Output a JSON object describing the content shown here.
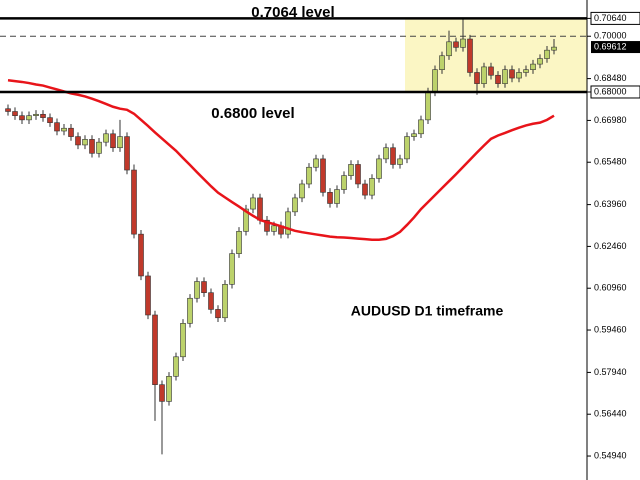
{
  "chart_data": {
    "type": "candlestick",
    "ylim": [
      0.5408,
      0.713
    ],
    "yticks": [
      {
        "value": 0.7064,
        "label": "0.70640"
      },
      {
        "value": 0.7,
        "label": "0.70000"
      },
      {
        "value": 0.6848,
        "label": "0.68480"
      },
      {
        "value": 0.68,
        "label": "0.68000"
      },
      {
        "value": 0.6698,
        "label": "0.66980"
      },
      {
        "value": 0.6548,
        "label": "0.65480"
      },
      {
        "value": 0.6396,
        "label": "0.63960"
      },
      {
        "value": 0.6246,
        "label": "0.62460"
      },
      {
        "value": 0.6096,
        "label": "0.60960"
      },
      {
        "value": 0.5946,
        "label": "0.59460"
      },
      {
        "value": 0.5794,
        "label": "0.57940"
      },
      {
        "value": 0.5644,
        "label": "0.56440"
      },
      {
        "value": 0.5494,
        "label": "0.54940"
      }
    ],
    "last_price": {
      "value": 0.69612,
      "label": "0.69612"
    },
    "levels": [
      {
        "value": 0.7064,
        "label": "0.7064 level"
      },
      {
        "value": 0.68,
        "label": "0.6800 level"
      }
    ],
    "dashed_level": 0.7,
    "annotation": "AUDUSD D1 timeframe",
    "up_color": "#bcd26b",
    "down_color": "#c0392b",
    "zone_color": "#fbf6c4",
    "open": [
      0.674,
      0.673,
      0.6715,
      0.67,
      0.6715,
      0.672,
      0.6708,
      0.669,
      0.666,
      0.667,
      0.664,
      0.661,
      0.663,
      0.658,
      0.662,
      0.665,
      0.66,
      0.664,
      0.652,
      0.629,
      0.614,
      0.6,
      0.575,
      0.569,
      0.578,
      0.585,
      0.597,
      0.606,
      0.612,
      0.608,
      0.602,
      0.599,
      0.611,
      0.622,
      0.63,
      0.638,
      0.642,
      0.634,
      0.63,
      0.632,
      0.629,
      0.637,
      0.642,
      0.647,
      0.653,
      0.656,
      0.644,
      0.64,
      0.645,
      0.65,
      0.654,
      0.647,
      0.643,
      0.649,
      0.656,
      0.66,
      0.654,
      0.656,
      0.664,
      0.665,
      0.67,
      0.68,
      0.688,
      0.693,
      0.698,
      0.696,
      0.699,
      0.687,
      0.683,
      0.689,
      0.686,
      0.683,
      0.688,
      0.685,
      0.687,
      0.688,
      0.69,
      0.692,
      0.695
    ],
    "high": [
      0.6755,
      0.6745,
      0.673,
      0.673,
      0.6735,
      0.6735,
      0.6723,
      0.6705,
      0.6685,
      0.6685,
      0.6655,
      0.6645,
      0.6645,
      0.6635,
      0.6665,
      0.6665,
      0.67,
      0.6655,
      0.654,
      0.6305,
      0.6155,
      0.6015,
      0.5765,
      0.5795,
      0.5865,
      0.5985,
      0.6075,
      0.6135,
      0.6135,
      0.6095,
      0.6035,
      0.6125,
      0.6235,
      0.6315,
      0.6395,
      0.6435,
      0.6435,
      0.6355,
      0.6335,
      0.6335,
      0.6385,
      0.6435,
      0.6485,
      0.6545,
      0.6575,
      0.6575,
      0.6455,
      0.6465,
      0.6515,
      0.6555,
      0.6555,
      0.6485,
      0.6505,
      0.6575,
      0.6615,
      0.6615,
      0.6575,
      0.6655,
      0.6665,
      0.6715,
      0.6815,
      0.6895,
      0.6945,
      0.702,
      0.6995,
      0.7064,
      0.7005,
      0.6885,
      0.6905,
      0.6905,
      0.6875,
      0.6895,
      0.6895,
      0.6885,
      0.6895,
      0.6915,
      0.6935,
      0.6965,
      0.699
    ],
    "low": [
      0.6715,
      0.67,
      0.6685,
      0.6685,
      0.67,
      0.6693,
      0.6675,
      0.6645,
      0.6645,
      0.6625,
      0.6595,
      0.6595,
      0.6565,
      0.6565,
      0.6605,
      0.6585,
      0.6585,
      0.6505,
      0.6275,
      0.6125,
      0.5985,
      0.562,
      0.55,
      0.5675,
      0.5765,
      0.5835,
      0.5955,
      0.6045,
      0.6065,
      0.6005,
      0.5975,
      0.5975,
      0.6095,
      0.6205,
      0.6285,
      0.6365,
      0.6325,
      0.6285,
      0.6285,
      0.6275,
      0.6275,
      0.6355,
      0.6405,
      0.6455,
      0.6515,
      0.6425,
      0.6385,
      0.6385,
      0.6435,
      0.6485,
      0.6455,
      0.6415,
      0.6415,
      0.6475,
      0.6545,
      0.6525,
      0.6525,
      0.6545,
      0.6625,
      0.6635,
      0.6685,
      0.6785,
      0.6865,
      0.6915,
      0.6945,
      0.6945,
      0.6855,
      0.679,
      0.6815,
      0.6845,
      0.6815,
      0.6815,
      0.6835,
      0.6835,
      0.6855,
      0.6865,
      0.6885,
      0.6905,
      0.6935
    ],
    "close": [
      0.673,
      0.6715,
      0.67,
      0.6715,
      0.672,
      0.6708,
      0.669,
      0.666,
      0.667,
      0.664,
      0.661,
      0.663,
      0.658,
      0.662,
      0.665,
      0.66,
      0.664,
      0.652,
      0.629,
      0.614,
      0.6,
      0.575,
      0.569,
      0.578,
      0.585,
      0.597,
      0.606,
      0.612,
      0.608,
      0.602,
      0.599,
      0.611,
      0.622,
      0.63,
      0.638,
      0.642,
      0.634,
      0.63,
      0.632,
      0.629,
      0.637,
      0.642,
      0.647,
      0.653,
      0.656,
      0.644,
      0.64,
      0.645,
      0.65,
      0.654,
      0.647,
      0.643,
      0.649,
      0.656,
      0.66,
      0.654,
      0.656,
      0.664,
      0.665,
      0.67,
      0.68,
      0.688,
      0.693,
      0.698,
      0.696,
      0.699,
      0.687,
      0.683,
      0.689,
      0.686,
      0.683,
      0.688,
      0.685,
      0.687,
      0.688,
      0.69,
      0.692,
      0.695,
      0.6961
    ],
    "moving_average": {
      "color": "#e8141a",
      "values": [
        0.6842,
        0.6839,
        0.6836,
        0.6832,
        0.6827,
        0.6823,
        0.6816,
        0.6809,
        0.6802,
        0.6795,
        0.679,
        0.6784,
        0.6776,
        0.6767,
        0.6757,
        0.6747,
        0.674,
        0.6736,
        0.6722,
        0.67,
        0.6678,
        0.6655,
        0.6633,
        0.6611,
        0.6589,
        0.6563,
        0.6538,
        0.6512,
        0.6487,
        0.6462,
        0.6439,
        0.6422,
        0.6405,
        0.6389,
        0.6372,
        0.6356,
        0.6341,
        0.6333,
        0.6326,
        0.6318,
        0.631,
        0.6302,
        0.6297,
        0.6293,
        0.6289,
        0.6285,
        0.6281,
        0.6279,
        0.6278,
        0.6276,
        0.6274,
        0.6272,
        0.627,
        0.627,
        0.6273,
        0.6283,
        0.6298,
        0.6323,
        0.635,
        0.638,
        0.6405,
        0.643,
        0.6455,
        0.648,
        0.6505,
        0.6531,
        0.6557,
        0.6583,
        0.6608,
        0.6632,
        0.6644,
        0.6653,
        0.6663,
        0.6672,
        0.668,
        0.6686,
        0.669,
        0.67,
        0.6715
      ]
    }
  }
}
